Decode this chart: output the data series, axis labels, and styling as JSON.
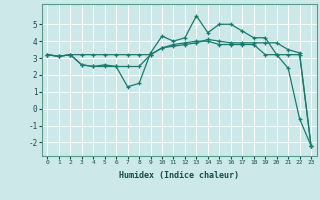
{
  "xlabel": "Humidex (Indice chaleur)",
  "bg_color": "#cce8e8",
  "grid_color": "#ffffff",
  "line_color": "#1a7a6e",
  "xlim": [
    -0.5,
    23.5
  ],
  "ylim": [
    -2.8,
    6.2
  ],
  "yticks": [
    -2,
    -1,
    0,
    1,
    2,
    3,
    4,
    5
  ],
  "xticks": [
    0,
    1,
    2,
    3,
    4,
    5,
    6,
    7,
    8,
    9,
    10,
    11,
    12,
    13,
    14,
    15,
    16,
    17,
    18,
    19,
    20,
    21,
    22,
    23
  ],
  "line1_x": [
    0,
    1,
    2,
    3,
    4,
    5,
    6,
    7,
    8,
    9,
    10,
    11,
    12,
    13,
    14,
    15,
    16,
    17,
    18,
    19,
    20,
    21,
    22,
    23
  ],
  "line1_y": [
    3.2,
    3.1,
    3.2,
    2.6,
    2.5,
    2.6,
    2.5,
    1.3,
    1.5,
    3.3,
    4.3,
    4.0,
    4.2,
    5.5,
    4.5,
    5.0,
    5.0,
    4.6,
    4.2,
    4.2,
    3.2,
    2.4,
    -0.6,
    -2.2
  ],
  "line2_x": [
    0,
    1,
    2,
    3,
    4,
    5,
    6,
    7,
    8,
    9,
    10,
    11,
    12,
    13,
    14,
    15,
    16,
    17,
    18,
    19,
    20,
    21,
    22,
    23
  ],
  "line2_y": [
    3.2,
    3.1,
    3.2,
    2.6,
    2.5,
    2.5,
    2.5,
    2.5,
    2.5,
    3.2,
    3.6,
    3.8,
    3.9,
    4.0,
    4.0,
    3.8,
    3.8,
    3.8,
    3.8,
    3.2,
    3.2,
    3.2,
    3.2,
    -2.2
  ],
  "line3_x": [
    0,
    1,
    2,
    3,
    4,
    5,
    6,
    7,
    8,
    9,
    10,
    11,
    12,
    13,
    14,
    15,
    16,
    17,
    18,
    19,
    20,
    21,
    22,
    23
  ],
  "line3_y": [
    3.2,
    3.1,
    3.2,
    3.2,
    3.2,
    3.2,
    3.2,
    3.2,
    3.2,
    3.2,
    3.6,
    3.7,
    3.8,
    3.9,
    4.1,
    4.0,
    3.9,
    3.9,
    3.9,
    3.9,
    3.9,
    3.5,
    3.3,
    -2.2
  ]
}
